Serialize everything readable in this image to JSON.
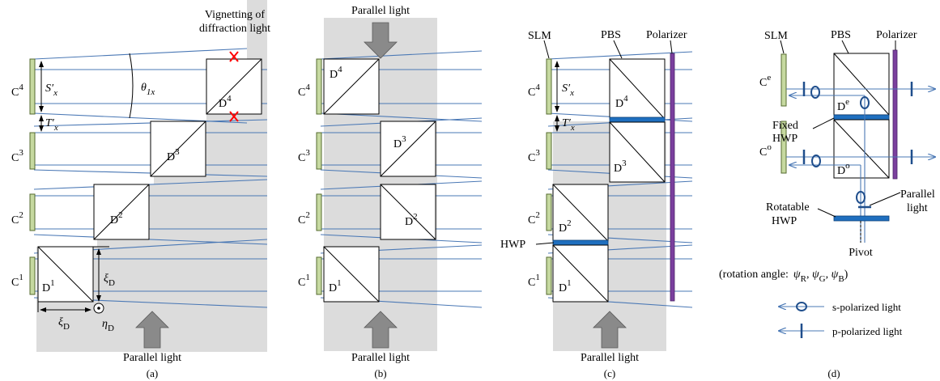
{
  "panels": {
    "a": {
      "caption": "(a)",
      "bottom_label": "Parallel light",
      "vignetting_line1": "Vignetting of",
      "vignetting_line2": "diffraction light",
      "cells": [
        "C",
        "C",
        "C",
        "C"
      ],
      "cell_sup": [
        "4",
        "3",
        "2",
        "1"
      ],
      "cubes": [
        "D",
        "D",
        "D",
        "D"
      ],
      "cube_sup": [
        "4",
        "3",
        "2",
        "1"
      ],
      "sx": "S′",
      "sx_sub": "x",
      "tx": "T′",
      "tx_sub": "x",
      "theta": "θ",
      "theta_sub": "1x",
      "xi_v": "ξ",
      "xi_v_sub": "D",
      "xi_h": "ξ",
      "xi_h_sub": "D",
      "eta": "η",
      "eta_sub": "D"
    },
    "b": {
      "caption": "(b)",
      "top_label": "Parallel light",
      "bottom_label": "Parallel light",
      "cells": [
        "C",
        "C",
        "C",
        "C"
      ],
      "cell_sup": [
        "4",
        "3",
        "2",
        "1"
      ],
      "cubes": [
        "D",
        "D",
        "D",
        "D"
      ],
      "cube_sup": [
        "4",
        "3",
        "2",
        "1"
      ]
    },
    "c": {
      "caption": "(c)",
      "bottom_label": "Parallel light",
      "slm_label": "SLM",
      "pbs_label": "PBS",
      "polarizer_label": "Polarizer",
      "hwp_label": "HWP",
      "cells": [
        "C",
        "C",
        "C",
        "C"
      ],
      "cell_sup": [
        "4",
        "3",
        "2",
        "1"
      ],
      "cubes": [
        "D",
        "D",
        "D",
        "D"
      ],
      "cube_sup": [
        "4",
        "3",
        "2",
        "1"
      ],
      "sx": "S′",
      "sx_sub": "x",
      "tx": "T′",
      "tx_sub": "x"
    },
    "d": {
      "caption": "(d)",
      "slm_label": "SLM",
      "pbs_label": "PBS",
      "polarizer_label": "Polarizer",
      "fixed_hwp_line1": "Fixed",
      "fixed_hwp_line2": "HWP",
      "rotatable_line1": "Rotatable",
      "rotatable_line2": "HWP",
      "parallel_line1": "Parallel",
      "parallel_line2": "light",
      "pivot_label": "Pivot",
      "rotation_label": "(rotation angle:",
      "psi": "ψ",
      "psi_subs": [
        "R",
        "G",
        "B"
      ],
      "rotation_close": ")",
      "ce": "C",
      "ce_sup": "e",
      "co": "C",
      "co_sup": "o",
      "de": "D",
      "de_sup": "e",
      "do": "D",
      "do_sup": "o",
      "legend_s": "s-polarized light",
      "legend_p": "p-polarized light"
    }
  }
}
